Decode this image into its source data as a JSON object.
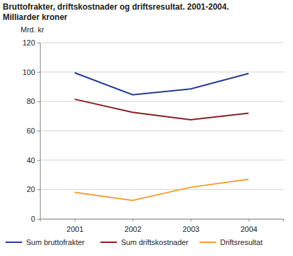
{
  "chart_data": {
    "type": "line",
    "title": "Bruttofrakter, driftskostnader og driftsresultat. 2001-2004.",
    "subtitle": "Milliarder kroner",
    "y_label": "Mrd. kr",
    "categories": [
      "2001",
      "2002",
      "2003",
      "2004"
    ],
    "series": [
      {
        "name": "Sum bruttofrakter",
        "color": "#1f3a93",
        "values": [
          99.5,
          84.5,
          88.5,
          99
        ]
      },
      {
        "name": "Sum driftskostnader",
        "color": "#8b1a1a",
        "values": [
          81.5,
          72.5,
          67.5,
          72
        ]
      },
      {
        "name": "Driftsresultat",
        "color": "#f0a030",
        "values": [
          18,
          12.5,
          21.5,
          27
        ]
      }
    ],
    "ylim": [
      0,
      120
    ],
    "yticks": [
      0,
      20,
      40,
      60,
      80,
      100,
      120
    ],
    "grid": true,
    "legend": "bottom"
  }
}
